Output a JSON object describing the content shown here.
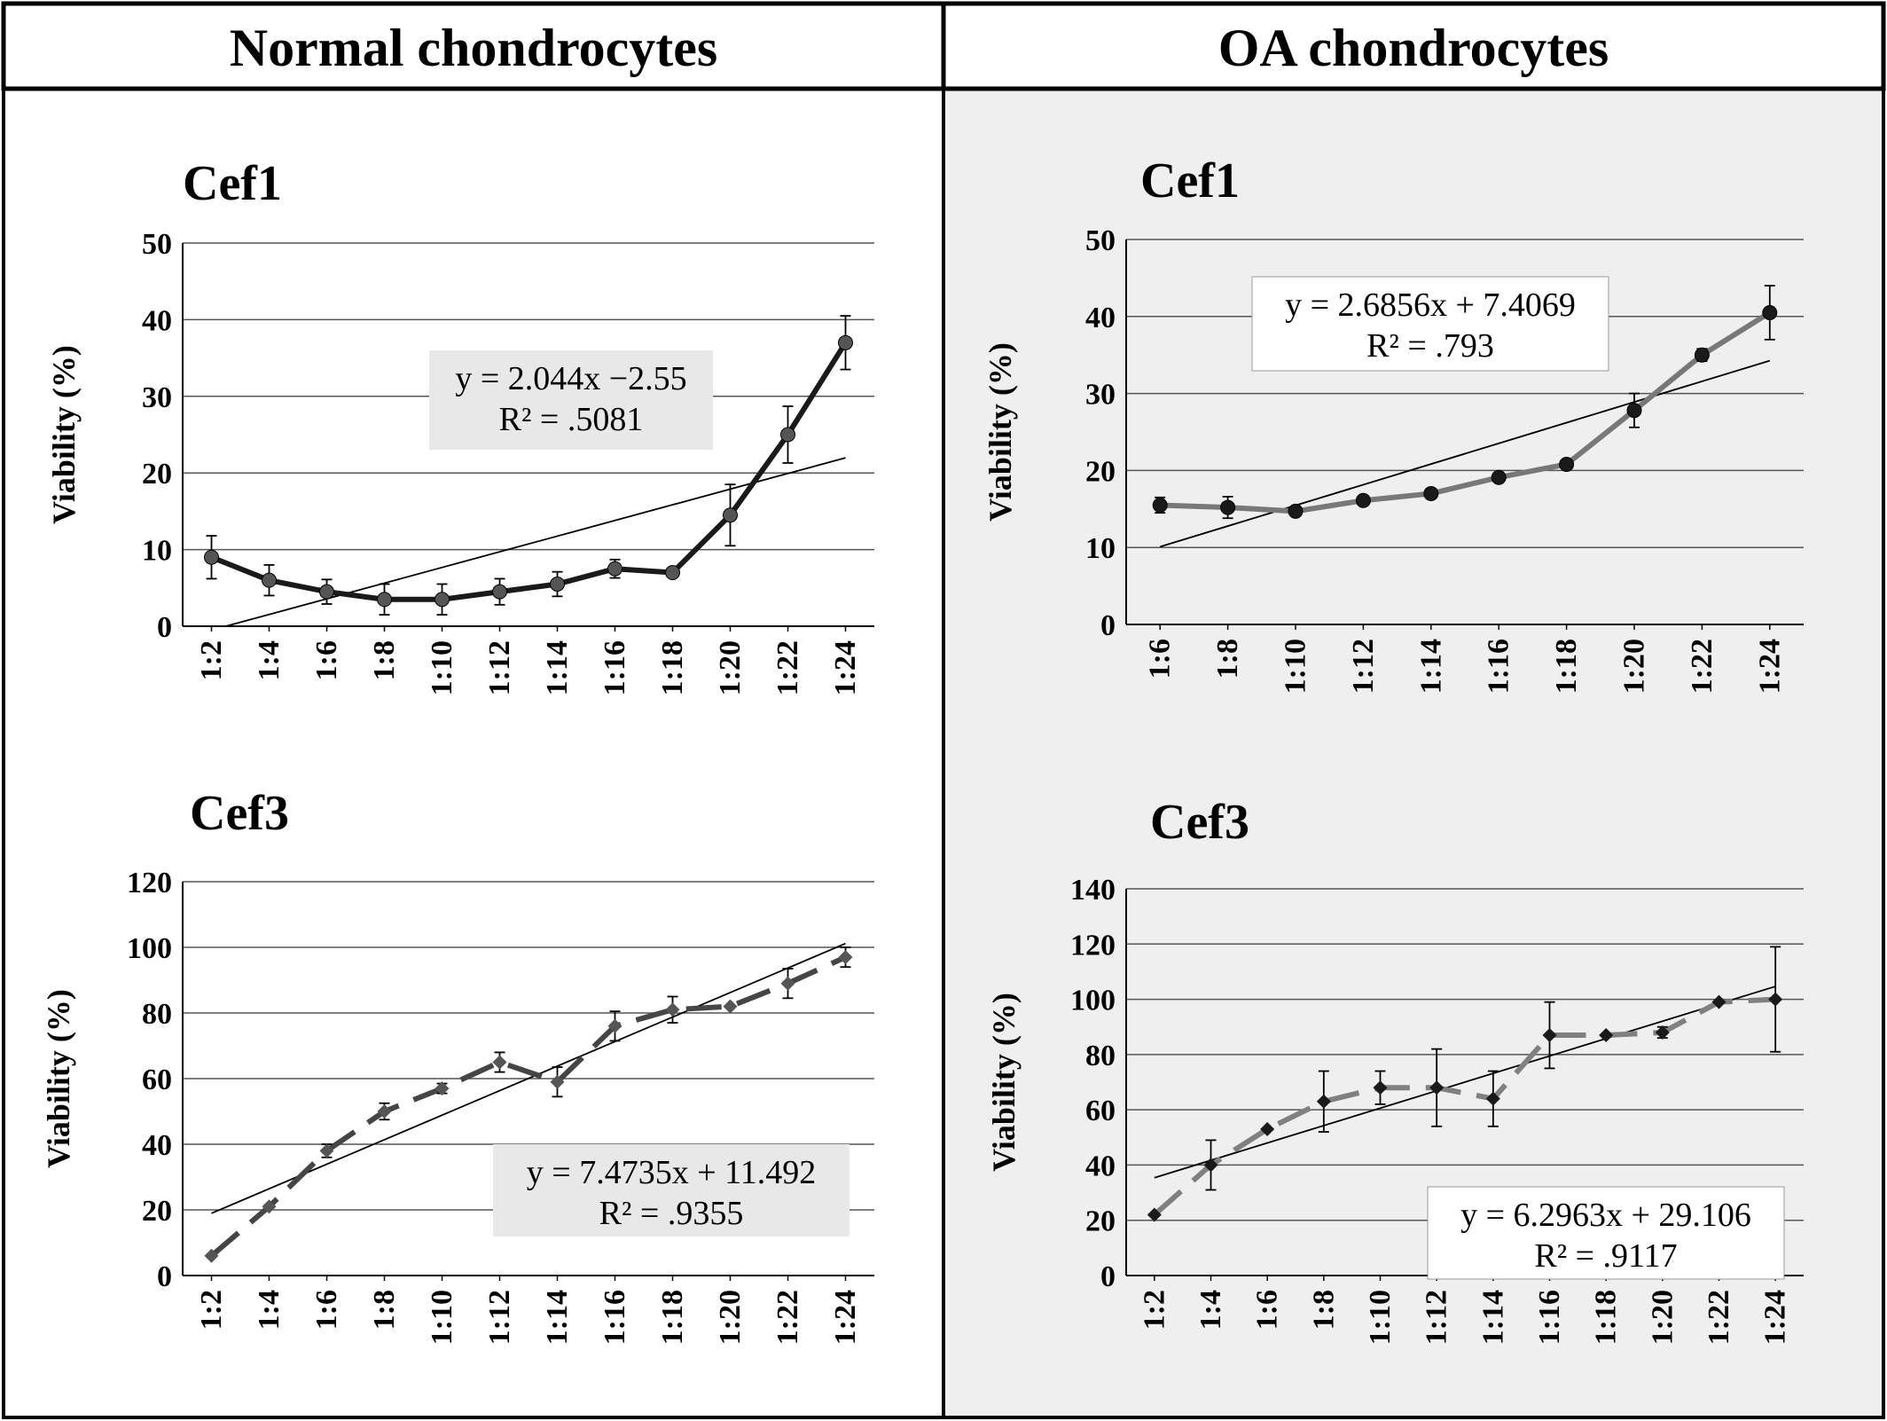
{
  "panels": [
    {
      "title": "Normal chondrocytes",
      "background": "#ffffff"
    },
    {
      "title": "OA chondrocytes",
      "background": "#efefef"
    }
  ],
  "chart_data": [
    {
      "panel": "Normal chondrocytes",
      "title": "Cef1",
      "type": "line",
      "ylabel": "Viability (%)",
      "ylim": [
        0,
        50
      ],
      "yticks": [
        0,
        10,
        20,
        30,
        40,
        50
      ],
      "grid": true,
      "categories": [
        "1:2",
        "1:4",
        "1:6",
        "1:8",
        "1:10",
        "1:12",
        "1:14",
        "1:16",
        "1:18",
        "1:20",
        "1:22",
        "1:24"
      ],
      "series": [
        {
          "values": [
            9,
            6,
            4.5,
            3.5,
            3.5,
            4.5,
            5.5,
            7.5,
            7,
            14.5,
            25,
            37
          ],
          "errors": [
            2.8,
            2,
            1.6,
            2,
            2,
            1.7,
            1.6,
            1.2,
            0,
            4,
            3.7,
            3.5
          ],
          "color": "#1a1a1a",
          "dash": "solid",
          "marker": "circle",
          "marker_color": "#555555"
        }
      ],
      "trendline": {
        "slope": 2.044,
        "intercept": -2.55,
        "color": "#000000",
        "equation": "y = 2.044x −2.55",
        "r2": "R² = .5081",
        "box_fill": "#e8e8e8"
      }
    },
    {
      "panel": "Normal chondrocytes",
      "title": "Cef3",
      "type": "line",
      "ylabel": "Viability (%)",
      "ylim": [
        0,
        120
      ],
      "yticks": [
        0,
        20,
        40,
        60,
        80,
        100,
        120
      ],
      "grid": true,
      "categories": [
        "1:2",
        "1:4",
        "1:6",
        "1:8",
        "1:10",
        "1:12",
        "1:14",
        "1:16",
        "1:18",
        "1:20",
        "1:22",
        "1:24"
      ],
      "series": [
        {
          "values": [
            6,
            21,
            38,
            50,
            57,
            65,
            59,
            76,
            81,
            82,
            89,
            97
          ],
          "errors": [
            0,
            0,
            2,
            2.5,
            1.5,
            3,
            4.5,
            4.5,
            4,
            0,
            4.5,
            3
          ],
          "color": "#454545",
          "dash": "dashed",
          "marker": "diamond",
          "marker_color": "#555555"
        }
      ],
      "trendline": {
        "slope": 7.4735,
        "intercept": 11.492,
        "color": "#000000",
        "equation": "y = 7.4735x + 11.492",
        "r2": "R² = .9355",
        "box_fill": "#e8e8e8"
      }
    },
    {
      "panel": "OA chondrocytes",
      "title": "Cef1",
      "type": "line",
      "ylabel": "Viability (%)",
      "ylim": [
        0,
        50
      ],
      "yticks": [
        0,
        10,
        20,
        30,
        40,
        50
      ],
      "grid": true,
      "categories": [
        "1:6",
        "1:8",
        "1:10",
        "1:12",
        "1:14",
        "1:16",
        "1:18",
        "1:20",
        "1:22",
        "1:24"
      ],
      "series": [
        {
          "values": [
            15.5,
            15.2,
            14.7,
            16.1,
            17,
            19.1,
            20.8,
            27.8,
            35,
            40.5
          ],
          "errors": [
            1,
            1.4,
            0,
            0,
            0,
            0,
            0,
            2.2,
            0.8,
            3.5
          ],
          "color": "#787878",
          "dash": "solid",
          "marker": "circle",
          "marker_color": "#1a1a1a"
        }
      ],
      "trendline": {
        "slope": 2.6856,
        "intercept": 7.4069,
        "color": "#000000",
        "equation": "y = 2.6856x + 7.4069",
        "r2": "R² = .793",
        "box_fill": "#ffffff"
      }
    },
    {
      "panel": "OA chondrocytes",
      "title": "Cef3",
      "type": "line",
      "ylabel": "Viability (%)",
      "ylim": [
        0,
        140
      ],
      "yticks": [
        0,
        20,
        40,
        60,
        80,
        100,
        120,
        140
      ],
      "grid": true,
      "categories": [
        "1:2",
        "1:4",
        "1:6",
        "1:8",
        "1:10",
        "1:12",
        "1:14",
        "1:16",
        "1:18",
        "1:20",
        "1:22",
        "1:24"
      ],
      "series": [
        {
          "values": [
            22,
            40,
            53,
            63,
            68,
            68,
            64,
            87,
            87,
            88,
            99,
            100
          ],
          "errors": [
            0,
            9,
            0,
            11,
            6,
            14,
            10,
            12,
            0,
            2,
            0,
            19
          ],
          "color": "#808080",
          "dash": "dashed",
          "marker": "diamond",
          "marker_color": "#1a1a1a"
        }
      ],
      "trendline": {
        "slope": 6.2963,
        "intercept": 29.106,
        "color": "#000000",
        "equation": "y = 6.2963x + 29.106",
        "r2": "R² = .9117",
        "box_fill": "#ffffff"
      }
    }
  ]
}
